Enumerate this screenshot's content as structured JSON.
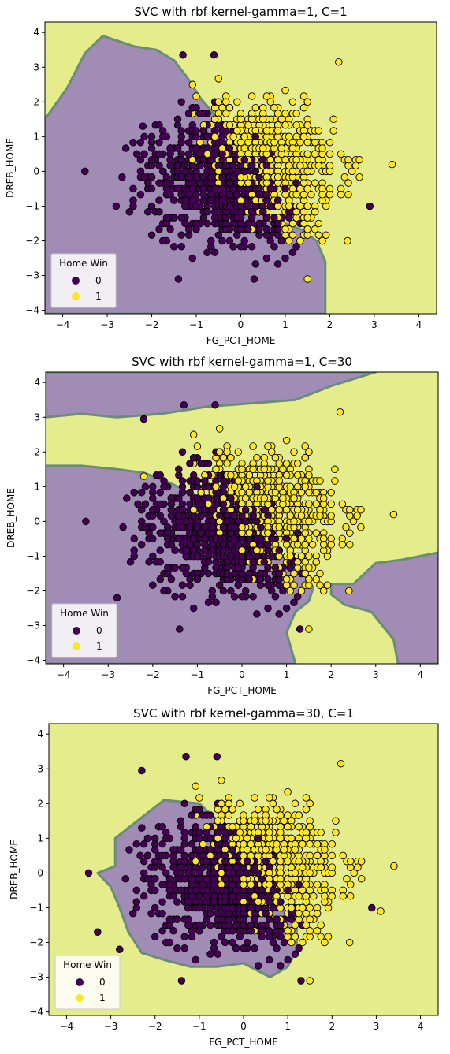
{
  "chart_data": [
    {
      "type": "scatter",
      "title": "SVC with rbf kernel-gamma=1, C=1",
      "xlabel": "FG_PCT_HOME",
      "ylabel": "DREB_HOME",
      "xlim": [
        -4.4,
        4.4
      ],
      "ylim": [
        -4.1,
        4.3
      ],
      "xticks": [
        -4,
        -3,
        -2,
        -1,
        0,
        1,
        2,
        3,
        4
      ],
      "yticks": [
        -4,
        -3,
        -2,
        -1,
        0,
        1,
        2,
        3,
        4
      ],
      "legend": {
        "title": "Home Win",
        "position": "lower-left",
        "entries": [
          "0",
          "1"
        ]
      },
      "colors": {
        "class_0": "#440154",
        "class_1": "#fde725",
        "region_0": "#a08cb4",
        "region_1": "#e4ec8c",
        "boundary": "#6a8c78"
      },
      "decision_regions": {
        "class_0": [
          [
            [
              -4.4,
              1.5
            ],
            [
              -3.9,
              2.4
            ],
            [
              -3.5,
              3.4
            ],
            [
              -3.1,
              3.9
            ],
            [
              -2.4,
              3.6
            ],
            [
              -1.9,
              3.5
            ],
            [
              -1.5,
              3.2
            ],
            [
              -1.2,
              2.7
            ],
            [
              -0.9,
              2.1
            ],
            [
              -0.5,
              1.5
            ],
            [
              -0.1,
              0.9
            ],
            [
              0.2,
              0.2
            ],
            [
              0.4,
              -0.6
            ],
            [
              0.6,
              -1.2
            ],
            [
              1.0,
              -1.5
            ],
            [
              1.4,
              -1.7
            ],
            [
              1.7,
              -2.0
            ],
            [
              1.9,
              -2.6
            ],
            [
              1.9,
              -3.2
            ],
            [
              1.9,
              -4.1
            ],
            [
              -4.4,
              -4.1
            ]
          ]
        ]
      },
      "points": [
        {
          "x": -3.5,
          "y": 0.0,
          "c": 0
        },
        {
          "x": -2.8,
          "y": -1.0,
          "c": 0
        },
        {
          "x": -2.2,
          "y": 1.3,
          "c": 0
        },
        {
          "x": -1.3,
          "y": 3.35,
          "c": 0
        },
        {
          "x": -0.6,
          "y": 3.35,
          "c": 0
        },
        {
          "x": -1.4,
          "y": -3.1,
          "c": 0
        },
        {
          "x": 0.3,
          "y": -3.1,
          "c": 0
        },
        {
          "x": 1.5,
          "y": -3.1,
          "c": 1
        },
        {
          "x": 2.2,
          "y": 3.15,
          "c": 1
        },
        {
          "x": 3.4,
          "y": 0.2,
          "c": 1
        },
        {
          "x": 2.9,
          "y": -1.0,
          "c": 0
        },
        {
          "x": 2.4,
          "y": -2.0,
          "c": 1
        }
      ]
    },
    {
      "type": "scatter",
      "title": "SVC with rbf kernel-gamma=1, C=30",
      "xlabel": "FG_PCT_HOME",
      "ylabel": "DREB_HOME",
      "xlim": [
        -4.4,
        4.4
      ],
      "ylim": [
        -4.1,
        4.3
      ],
      "xticks": [
        -4,
        -3,
        -2,
        -1,
        0,
        1,
        2,
        3,
        4
      ],
      "yticks": [
        -4,
        -3,
        -2,
        -1,
        0,
        1,
        2,
        3,
        4
      ],
      "legend": {
        "title": "Home Win",
        "position": "lower-left",
        "entries": [
          "0",
          "1"
        ]
      },
      "colors": {
        "class_0": "#440154",
        "class_1": "#fde725",
        "region_0": "#a08cb4",
        "region_1": "#e4ec8c",
        "boundary": "#6a8c78"
      },
      "decision_regions": {
        "class_0": [
          [
            [
              -4.4,
              4.3
            ],
            [
              3.0,
              4.3
            ],
            [
              2.0,
              3.9
            ],
            [
              1.2,
              3.5
            ],
            [
              0.2,
              3.4
            ],
            [
              -0.8,
              3.3
            ],
            [
              -1.8,
              3.1
            ],
            [
              -2.8,
              3.0
            ],
            [
              -3.6,
              3.1
            ],
            [
              -4.4,
              3.0
            ]
          ],
          [
            [
              -4.4,
              1.6
            ],
            [
              -3.6,
              1.6
            ],
            [
              -2.8,
              1.5
            ],
            [
              -2.2,
              1.4
            ],
            [
              -1.6,
              1.1
            ],
            [
              -0.8,
              0.6
            ],
            [
              0.0,
              0.2
            ],
            [
              0.5,
              -0.5
            ],
            [
              0.9,
              -1.0
            ],
            [
              1.3,
              -1.4
            ],
            [
              1.6,
              -1.9
            ],
            [
              1.5,
              -2.3
            ],
            [
              1.2,
              -2.6
            ],
            [
              1.0,
              -3.2
            ],
            [
              1.2,
              -4.1
            ],
            [
              -4.4,
              -4.1
            ]
          ],
          [
            [
              2.0,
              -1.8
            ],
            [
              2.5,
              -1.8
            ],
            [
              3.0,
              -1.2
            ],
            [
              3.6,
              -1.1
            ],
            [
              4.4,
              -0.9
            ],
            [
              4.4,
              -4.1
            ],
            [
              3.5,
              -4.1
            ],
            [
              3.4,
              -3.4
            ],
            [
              2.9,
              -2.6
            ],
            [
              2.3,
              -2.4
            ],
            [
              2.0,
              -2.1
            ]
          ]
        ]
      },
      "points": [
        {
          "x": -3.5,
          "y": 0.0,
          "c": 0
        },
        {
          "x": -2.8,
          "y": -2.2,
          "c": 0
        },
        {
          "x": -2.2,
          "y": 1.3,
          "c": 1
        },
        {
          "x": -2.2,
          "y": 2.95,
          "c": 0
        },
        {
          "x": -1.3,
          "y": 3.35,
          "c": 0
        },
        {
          "x": -0.6,
          "y": 3.35,
          "c": 0
        },
        {
          "x": -1.4,
          "y": -3.1,
          "c": 0
        },
        {
          "x": 1.3,
          "y": -3.1,
          "c": 0
        },
        {
          "x": 1.5,
          "y": -3.1,
          "c": 1
        },
        {
          "x": 2.2,
          "y": 3.15,
          "c": 1
        },
        {
          "x": 3.4,
          "y": 0.2,
          "c": 1
        },
        {
          "x": 2.4,
          "y": -2.0,
          "c": 1
        }
      ]
    },
    {
      "type": "scatter",
      "title": "SVC with rbf kernel-gamma=30, C=1",
      "xlabel": "FG_PCT_HOME",
      "ylabel": "DREB_HOME",
      "xlim": [
        -4.4,
        4.4
      ],
      "ylim": [
        -4.1,
        4.3
      ],
      "xticks": [
        -4,
        -3,
        -2,
        -1,
        0,
        1,
        2,
        3,
        4
      ],
      "yticks": [
        -4,
        -3,
        -2,
        -1,
        0,
        1,
        2,
        3,
        4
      ],
      "legend": {
        "title": "Home Win",
        "position": "lower-left",
        "entries": [
          "0",
          "1"
        ]
      },
      "colors": {
        "class_0": "#440154",
        "class_1": "#fde725",
        "region_0": "#a08cb4",
        "region_1": "#e4ec8c",
        "boundary": "#6a8c78"
      },
      "decision_regions": {
        "class_0": [
          [
            [
              -2.4,
              1.5
            ],
            [
              -1.8,
              2.1
            ],
            [
              -1.0,
              2.0
            ],
            [
              -0.4,
              1.3
            ],
            [
              0.2,
              0.6
            ],
            [
              0.5,
              -0.2
            ],
            [
              0.8,
              -0.9
            ],
            [
              1.2,
              -1.6
            ],
            [
              1.2,
              -2.2
            ],
            [
              1.0,
              -2.7
            ],
            [
              0.6,
              -3.0
            ],
            [
              0.0,
              -2.6
            ],
            [
              -0.6,
              -2.7
            ],
            [
              -1.2,
              -2.7
            ],
            [
              -1.8,
              -2.5
            ],
            [
              -2.3,
              -2.3
            ],
            [
              -2.6,
              -1.7
            ],
            [
              -2.8,
              -1.0
            ],
            [
              -3.0,
              -0.4
            ],
            [
              -3.3,
              0.0
            ],
            [
              -2.9,
              0.2
            ],
            [
              -2.9,
              1.0
            ],
            [
              -2.6,
              1.3
            ]
          ]
        ]
      },
      "points": [
        {
          "x": -3.5,
          "y": 0.0,
          "c": 0
        },
        {
          "x": -3.3,
          "y": -1.7,
          "c": 0
        },
        {
          "x": -2.8,
          "y": -2.2,
          "c": 0
        },
        {
          "x": -2.3,
          "y": 1.3,
          "c": 0
        },
        {
          "x": -2.3,
          "y": 2.95,
          "c": 0
        },
        {
          "x": -1.3,
          "y": 3.35,
          "c": 0
        },
        {
          "x": -0.6,
          "y": 3.35,
          "c": 0
        },
        {
          "x": -1.4,
          "y": -3.1,
          "c": 0
        },
        {
          "x": 1.3,
          "y": -3.1,
          "c": 0
        },
        {
          "x": 1.5,
          "y": -3.1,
          "c": 1
        },
        {
          "x": 2.2,
          "y": 3.15,
          "c": 1
        },
        {
          "x": 3.4,
          "y": 0.2,
          "c": 1
        },
        {
          "x": 2.9,
          "y": -1.0,
          "c": 0
        },
        {
          "x": 3.1,
          "y": -1.1,
          "c": 1
        },
        {
          "x": 2.4,
          "y": -2.0,
          "c": 1
        }
      ]
    }
  ]
}
